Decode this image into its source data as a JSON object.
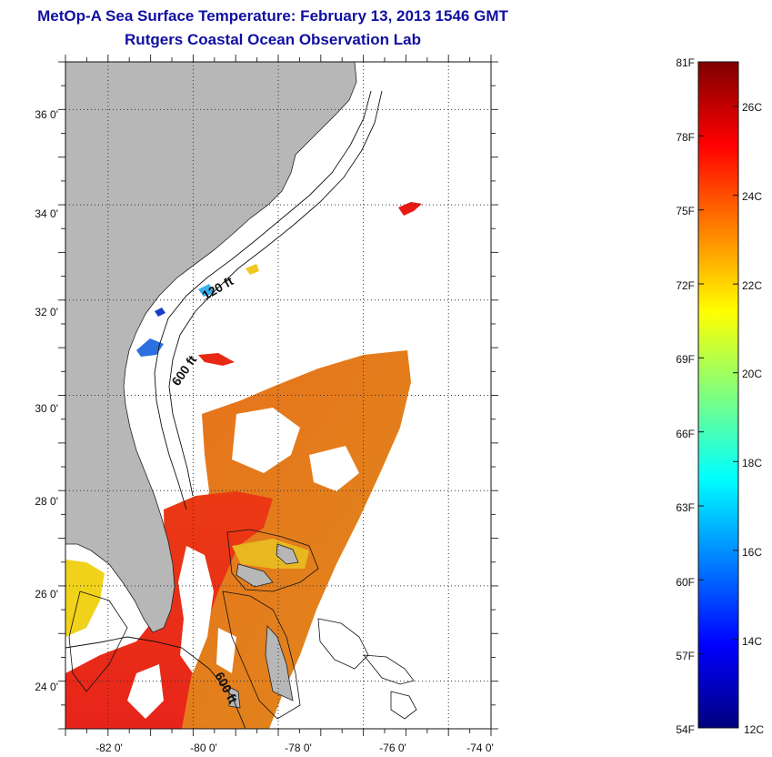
{
  "title": {
    "line1": "MetOp-A Sea Surface Temperature:  February 13, 2013 1546 GMT",
    "line2": "Rutgers Coastal Ocean Observation Lab"
  },
  "map": {
    "lon_range": [
      -83,
      -73
    ],
    "lat_range": [
      23,
      37
    ],
    "lon_ticks": [
      "-82 0'",
      "-80 0'",
      "-78 0'",
      "-76 0'",
      "-74 0'"
    ],
    "lat_ticks": [
      "24 0'",
      "26 0'",
      "28 0'",
      "30 0'",
      "32 0'",
      "34 0'",
      "36 0'"
    ],
    "land_color": "#b7b7b7",
    "grid": "dotted",
    "isobath_labels": [
      "120 ft",
      "600 ft",
      "600 ft"
    ]
  },
  "colorbar": {
    "fahrenheit_labels": [
      "81F",
      "78F",
      "75F",
      "72F",
      "69F",
      "66F",
      "63F",
      "60F",
      "57F",
      "54F"
    ],
    "celsius_labels": [
      "26C",
      "24C",
      "22C",
      "20C",
      "18C",
      "16C",
      "14C",
      "12C"
    ],
    "colormap": "jet"
  }
}
